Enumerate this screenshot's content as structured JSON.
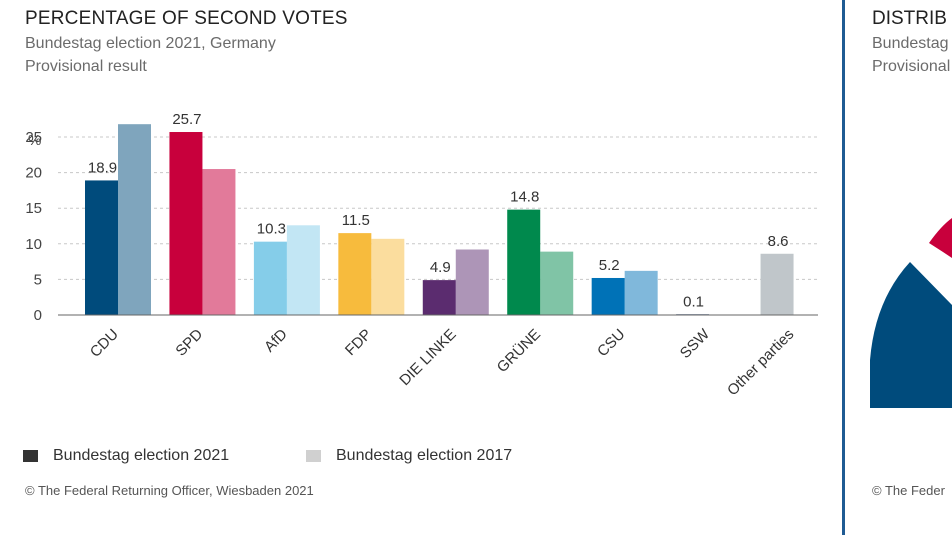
{
  "left_panel": {
    "title": "PERCENTAGE OF SECOND VOTES",
    "subtitle_1": "Bundestag election 2021, Germany",
    "subtitle_2": "Provisional result",
    "legend": [
      {
        "label": "Bundestag election 2021",
        "color": "#333333"
      },
      {
        "label": "Bundestag election 2017",
        "color": "#d0d0d0"
      }
    ],
    "source": "© The Federal Returning Officer, Wiesbaden 2021"
  },
  "right_panel": {
    "title_fragment": "DISTRIB",
    "subtitle_1_fragment": "Bundestag",
    "subtitle_2_fragment": "Provisional",
    "source_fragment": "© The Feder",
    "segment_colors": [
      "#004b7c",
      "#c8003c"
    ]
  },
  "chart_data": {
    "type": "bar",
    "unit_label": "%",
    "categories": [
      "CDU",
      "SPD",
      "AfD",
      "FDP",
      "DIE LINKE",
      "GRÜNE",
      "CSU",
      "SSW",
      "Other parties"
    ],
    "series": [
      {
        "name": "Bundestag election 2021",
        "values": [
          18.9,
          25.7,
          10.3,
          11.5,
          4.9,
          14.8,
          5.2,
          0.1,
          8.6
        ]
      },
      {
        "name": "Bundestag election 2017",
        "values": [
          26.8,
          20.5,
          12.6,
          10.7,
          9.2,
          8.9,
          6.2,
          0,
          null
        ]
      }
    ],
    "data_labels": [
      "18.9",
      "25.7",
      "10.3",
      "11.5",
      "4.9",
      "14.8",
      "5.2",
      "0.1",
      "8.6"
    ],
    "colors_2021": [
      "#004b7c",
      "#c8003c",
      "#85cde9",
      "#f7bb3d",
      "#5b2c6f",
      "#00894d",
      "#0072b7",
      "#1a3a6b",
      "#c0c6ca"
    ],
    "colors_2017": [
      "#7fa5bd",
      "#e27a9a",
      "#c2e6f4",
      "#fbdd9e",
      "#ad95b7",
      "#80c4a6",
      "#80b8db",
      "#8c9cb5",
      "#dfe2e4"
    ],
    "yticks": [
      0,
      5,
      10,
      15,
      20,
      25
    ],
    "ylim": [
      0,
      25
    ],
    "grid": true
  }
}
